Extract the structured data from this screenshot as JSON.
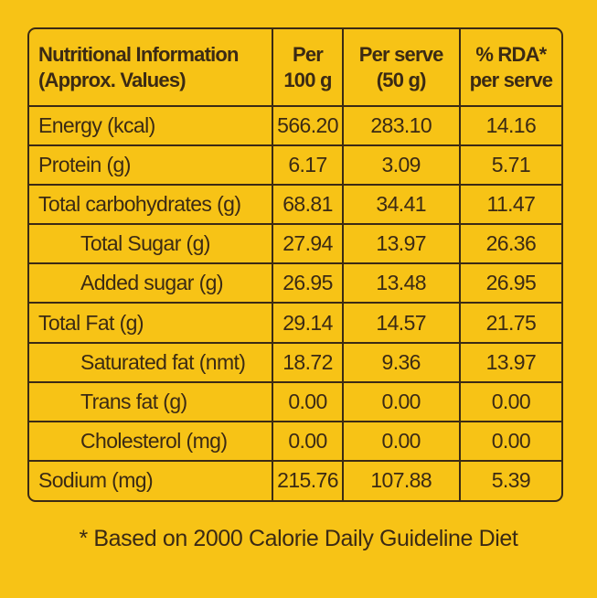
{
  "table": {
    "headers": [
      {
        "line1": "Nutritional Information",
        "line2": "(Approx. Values)"
      },
      {
        "line1": "Per",
        "line2": "100 g"
      },
      {
        "line1": "Per serve",
        "line2": "(50 g)"
      },
      {
        "line1": "% RDA*",
        "line2": "per serve"
      }
    ],
    "rows": [
      {
        "label": "Energy (kcal)",
        "per100g": "566.20",
        "perServe": "283.10",
        "rda": "14.16"
      },
      {
        "label": "Protein (g)",
        "per100g": "6.17",
        "perServe": "3.09",
        "rda": "5.71"
      },
      {
        "label": "Total carbohydrates (g)",
        "per100g": "68.81",
        "perServe": "34.41",
        "rda": "11.47"
      },
      {
        "label": "Total Sugar (g)",
        "per100g": "27.94",
        "perServe": "13.97",
        "rda": "26.36"
      },
      {
        "label": "Added sugar (g)",
        "per100g": "26.95",
        "perServe": "13.48",
        "rda": "26.95"
      },
      {
        "label": "Total Fat (g)",
        "per100g": "29.14",
        "perServe": "14.57",
        "rda": "21.75"
      },
      {
        "label": "Saturated fat (nmt)",
        "per100g": "18.72",
        "perServe": "9.36",
        "rda": "13.97"
      },
      {
        "label": "Trans fat (g)",
        "per100g": "0.00",
        "perServe": "0.00",
        "rda": "0.00"
      },
      {
        "label": "Cholesterol (mg)",
        "per100g": "0.00",
        "perServe": "0.00",
        "rda": "0.00"
      },
      {
        "label": "Sodium (mg)",
        "per100g": "215.76",
        "perServe": "107.88",
        "rda": "5.39"
      }
    ]
  },
  "footnote": "* Based on 2000 Calorie Daily Guideline Diet",
  "colors": {
    "background": "#F7C316",
    "ink": "#3b2a14"
  }
}
